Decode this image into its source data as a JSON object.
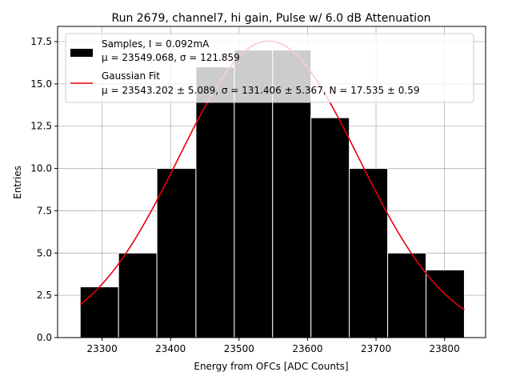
{
  "chart_data": {
    "type": "bar",
    "title": "Run 2679, channel7, hi gain, Pulse w/ 6.0 dB Attenuation",
    "xlabel": "Energy from OFCs [ADC Counts]",
    "ylabel": "Entries",
    "xlim": [
      23235,
      23860
    ],
    "ylim": [
      0,
      18.4
    ],
    "grid": true,
    "legend_position": "top-left",
    "xticks": [
      23300,
      23400,
      23500,
      23600,
      23700,
      23800
    ],
    "xtick_labels": [
      "23300",
      "23400",
      "23500",
      "23600",
      "23700",
      "23800"
    ],
    "yticks": [
      0,
      2.5,
      5,
      7.5,
      10,
      12.5,
      15,
      17.5
    ],
    "ytick_labels": [
      "0.0",
      "2.5",
      "5.0",
      "7.5",
      "10.0",
      "12.5",
      "15.0",
      "17.5"
    ],
    "bin_edges": [
      23268,
      23324,
      23380,
      23437,
      23493,
      23549,
      23605,
      23661,
      23717,
      23773,
      23829
    ],
    "bin_counts": [
      3,
      5,
      10,
      16,
      17,
      17,
      13,
      10,
      5,
      4
    ],
    "fit": {
      "mu": 23543.202,
      "sigma": 131.406,
      "N": 17.535,
      "x_range": [
        23268,
        23829
      ]
    },
    "series": [
      {
        "name": "Samples, I = 0.092mA",
        "name_line2": "μ = 23549.068, σ = 121.859",
        "color": "#000000"
      },
      {
        "name": "Gaussian Fit",
        "name_line2": "μ = 23543.202 ± 5.089, σ = 131.406 ± 5.367, N = 17.535 ± 0.59",
        "color": "#e8000b"
      }
    ]
  }
}
